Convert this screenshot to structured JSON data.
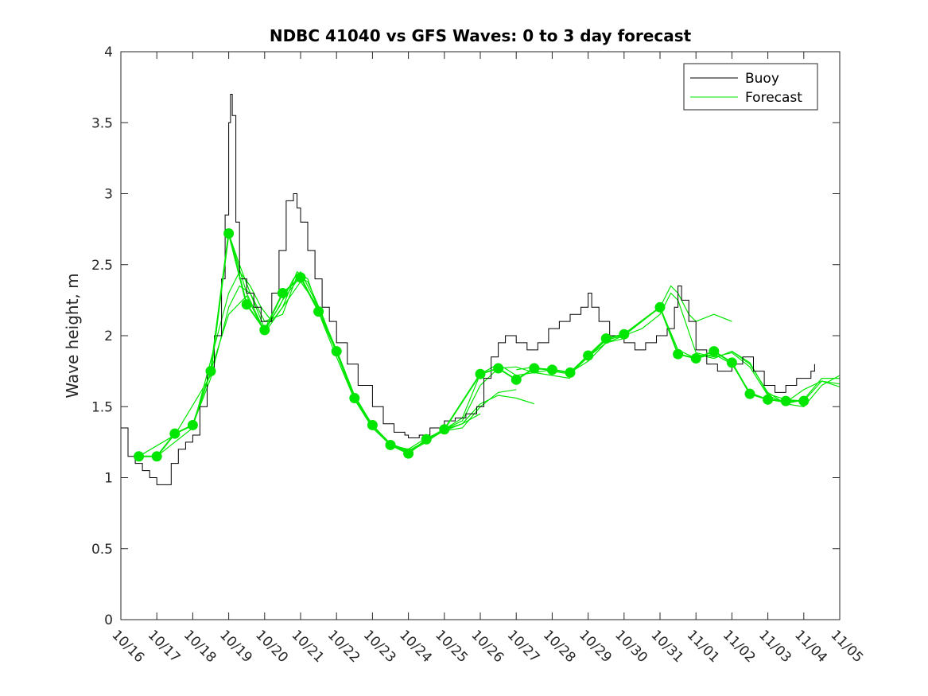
{
  "chart_data": {
    "type": "line",
    "title": "NDBC 41040 vs GFS Waves: 0 to 3 day forecast",
    "xlabel": "",
    "ylabel": "Wave height, m",
    "xlim": [
      0,
      20
    ],
    "ylim": [
      0,
      4
    ],
    "x_ticks": [
      0,
      1,
      2,
      3,
      4,
      5,
      6,
      7,
      8,
      9,
      10,
      11,
      12,
      13,
      14,
      15,
      16,
      17,
      18,
      19,
      20
    ],
    "x_tick_labels": [
      "10/16",
      "10/17",
      "10/18",
      "10/19",
      "10/20",
      "10/21",
      "10/22",
      "10/23",
      "10/24",
      "10/25",
      "10/26",
      "10/27",
      "10/28",
      "10/29",
      "10/30",
      "10/31",
      "11/01",
      "11/02",
      "11/03",
      "11/04",
      "11/05"
    ],
    "y_ticks": [
      0,
      0.5,
      1,
      1.5,
      2,
      2.5,
      3,
      3.5,
      4
    ],
    "y_tick_labels": [
      "0",
      "0.5",
      "1",
      "1.5",
      "2",
      "2.5",
      "3",
      "3.5",
      "4"
    ],
    "legend": {
      "position": "top-right",
      "entries": [
        {
          "label": "Buoy",
          "color": "#000000"
        },
        {
          "label": "Forecast",
          "color": "#00e600"
        }
      ]
    },
    "series": [
      {
        "name": "Buoy",
        "color": "#000000",
        "x": [
          0,
          0.2,
          0.4,
          0.6,
          0.8,
          1.0,
          1.2,
          1.4,
          1.6,
          1.8,
          2.0,
          2.2,
          2.4,
          2.6,
          2.8,
          2.9,
          3.0,
          3.05,
          3.1,
          3.2,
          3.3,
          3.5,
          3.7,
          3.9,
          4.0,
          4.2,
          4.4,
          4.6,
          4.8,
          4.9,
          5.0,
          5.2,
          5.4,
          5.6,
          5.8,
          6.0,
          6.3,
          6.6,
          7.0,
          7.3,
          7.6,
          7.9,
          8.0,
          8.3,
          8.6,
          9.0,
          9.3,
          9.6,
          9.9,
          10.1,
          10.3,
          10.5,
          10.7,
          11.0,
          11.3,
          11.6,
          11.9,
          12.2,
          12.5,
          12.8,
          13.0,
          13.1,
          13.3,
          13.6,
          14.0,
          14.3,
          14.6,
          14.9,
          15.2,
          15.4,
          15.5,
          15.6,
          15.8,
          16.0,
          16.3,
          16.6,
          17.0,
          17.3,
          17.6,
          17.9,
          18.2,
          18.5,
          18.8,
          19.0,
          19.2,
          19.3
        ],
        "values": [
          1.35,
          1.15,
          1.1,
          1.05,
          1.0,
          0.95,
          0.95,
          1.1,
          1.2,
          1.25,
          1.3,
          1.5,
          1.75,
          2.0,
          2.4,
          2.85,
          3.5,
          3.7,
          3.55,
          2.8,
          2.4,
          2.3,
          2.2,
          2.1,
          2.1,
          2.3,
          2.6,
          2.95,
          3.0,
          2.9,
          2.8,
          2.6,
          2.4,
          2.2,
          2.1,
          1.95,
          1.8,
          1.65,
          1.5,
          1.38,
          1.32,
          1.3,
          1.28,
          1.3,
          1.35,
          1.4,
          1.42,
          1.45,
          1.5,
          1.7,
          1.85,
          1.95,
          2.0,
          1.95,
          1.9,
          1.95,
          2.05,
          2.1,
          2.15,
          2.2,
          2.3,
          2.2,
          2.1,
          2.0,
          1.95,
          1.9,
          1.95,
          2.0,
          2.05,
          2.2,
          2.35,
          2.25,
          2.1,
          1.9,
          1.8,
          1.75,
          1.8,
          1.85,
          1.75,
          1.65,
          1.6,
          1.65,
          1.7,
          1.7,
          1.75,
          1.8
        ]
      },
      {
        "name": "Forecast",
        "color": "#00e600",
        "markers_x": [
          0.5,
          1.0,
          1.5,
          2.0,
          2.5,
          3.0,
          3.5,
          4.0,
          4.5,
          5.0,
          5.5,
          6.0,
          6.5,
          7.0,
          7.5,
          8.0,
          8.5,
          9.0,
          10.0,
          10.5,
          11.0,
          11.5,
          12.0,
          12.5,
          13.0,
          13.5,
          14.0,
          15.0,
          15.5,
          16.0,
          16.5,
          17.0,
          17.5,
          18.0,
          18.5,
          19.0
        ],
        "markers_y": [
          1.15,
          1.15,
          1.31,
          1.37,
          1.75,
          2.72,
          2.22,
          2.04,
          2.3,
          2.41,
          2.17,
          1.89,
          1.56,
          1.37,
          1.23,
          1.17,
          1.27,
          1.34,
          1.73,
          1.77,
          1.69,
          1.77,
          1.76,
          1.74,
          1.86,
          1.98,
          2.01,
          2.2,
          1.87,
          1.84,
          1.89,
          1.81,
          1.59,
          1.55,
          1.54,
          1.54
        ]
      }
    ],
    "forecast_runs": [
      {
        "x": [
          0.5,
          1.5,
          2.5,
          3.0,
          3.3,
          3.6,
          4.0,
          4.4,
          4.8,
          5.0,
          5.5,
          6.0,
          6.5,
          7.0,
          7.5,
          8.0,
          8.5,
          9.0,
          9.5,
          10.0
        ],
        "values": [
          1.15,
          1.3,
          1.72,
          2.72,
          2.5,
          2.3,
          2.05,
          2.2,
          2.4,
          2.45,
          2.2,
          1.9,
          1.58,
          1.37,
          1.24,
          1.18,
          1.25,
          1.34,
          1.38,
          1.45
        ]
      },
      {
        "x": [
          1.0,
          2.0,
          3.0,
          3.3,
          3.6,
          3.9,
          4.2,
          4.5,
          4.9,
          5.2,
          5.6,
          6.0,
          6.5,
          7.0,
          7.5,
          8.0,
          8.5,
          9.0,
          9.5,
          10.0,
          10.5,
          11.0
        ],
        "values": [
          1.15,
          1.35,
          2.3,
          2.45,
          2.35,
          2.2,
          2.1,
          2.2,
          2.45,
          2.4,
          2.1,
          1.85,
          1.55,
          1.35,
          1.23,
          1.2,
          1.28,
          1.33,
          1.35,
          1.5,
          1.6,
          1.62
        ]
      },
      {
        "x": [
          2.0,
          2.5,
          3.0,
          3.3,
          3.6,
          4.0,
          4.5,
          4.9,
          5.2,
          5.6,
          6.0,
          6.5,
          7.0,
          7.5,
          8.0,
          8.5,
          9.0,
          9.5,
          10.0,
          10.5,
          11.0,
          11.5
        ],
        "values": [
          1.37,
          1.7,
          2.2,
          2.35,
          2.3,
          2.1,
          2.15,
          2.42,
          2.38,
          2.15,
          1.88,
          1.55,
          1.36,
          1.24,
          1.19,
          1.26,
          1.33,
          1.38,
          1.52,
          1.58,
          1.56,
          1.52
        ]
      },
      {
        "x": [
          2.5,
          3.0,
          3.5,
          4.0,
          4.5,
          5.0,
          5.5,
          6.0,
          6.5,
          7.0,
          7.5,
          8.0,
          8.5,
          9.0,
          9.5,
          10.0,
          10.5,
          11.0,
          11.5,
          12.0,
          12.5
        ],
        "values": [
          1.75,
          2.15,
          2.28,
          2.02,
          2.2,
          2.38,
          2.2,
          1.88,
          1.56,
          1.36,
          1.24,
          1.18,
          1.26,
          1.34,
          1.4,
          1.65,
          1.77,
          1.78,
          1.74,
          1.72,
          1.7
        ]
      },
      {
        "x": [
          3.0,
          3.5,
          4.0,
          4.5,
          5.0,
          5.5,
          6.0,
          6.5,
          7.0,
          7.5,
          8.0,
          8.5,
          9.0,
          9.5,
          10.0,
          10.5,
          11.0,
          11.5,
          12.0,
          12.5,
          13.0,
          13.5,
          14.0
        ],
        "values": [
          2.72,
          2.3,
          2.03,
          2.25,
          2.42,
          2.17,
          1.9,
          1.57,
          1.37,
          1.23,
          1.17,
          1.27,
          1.34,
          1.42,
          1.73,
          1.8,
          1.72,
          1.74,
          1.76,
          1.74,
          1.82,
          1.95,
          1.98
        ]
      },
      {
        "x": [
          11.0,
          11.5,
          12.0,
          12.5,
          13.0,
          13.5,
          14.0,
          14.5,
          15.0,
          15.5,
          16.0,
          16.5,
          17.0,
          17.5,
          18.0,
          18.5,
          19.0,
          19.5,
          20.0
        ],
        "values": [
          1.76,
          1.78,
          1.75,
          1.73,
          1.85,
          1.97,
          2.0,
          2.1,
          2.2,
          1.9,
          1.84,
          1.87,
          1.8,
          1.6,
          1.55,
          1.53,
          1.62,
          1.68,
          1.66
        ]
      },
      {
        "x": [
          13.0,
          13.5,
          14.0,
          14.5,
          15.0,
          15.3,
          15.5,
          16.0,
          16.5,
          17.0,
          17.5,
          18.0,
          18.5,
          19.0,
          19.5,
          20.0
        ],
        "values": [
          1.85,
          1.95,
          2.0,
          2.05,
          2.15,
          2.3,
          2.25,
          1.88,
          1.85,
          1.88,
          1.78,
          1.58,
          1.52,
          1.55,
          1.7,
          1.7
        ]
      },
      {
        "x": [
          15.0,
          15.3,
          15.5,
          15.8,
          16.0,
          16.5,
          17.0
        ],
        "values": [
          2.2,
          2.35,
          2.3,
          2.15,
          2.1,
          2.15,
          2.1
        ]
      },
      {
        "x": [
          16.0,
          16.5,
          17.0,
          17.5,
          18.0,
          18.5,
          19.0,
          19.5,
          20.0
        ],
        "values": [
          1.87,
          1.84,
          1.89,
          1.81,
          1.59,
          1.55,
          1.54,
          1.68,
          1.64
        ]
      },
      {
        "x": [
          17.0,
          17.5,
          18.0,
          18.5,
          19.0,
          19.5,
          20.0
        ],
        "values": [
          1.89,
          1.8,
          1.6,
          1.52,
          1.5,
          1.65,
          1.72
        ]
      }
    ]
  }
}
